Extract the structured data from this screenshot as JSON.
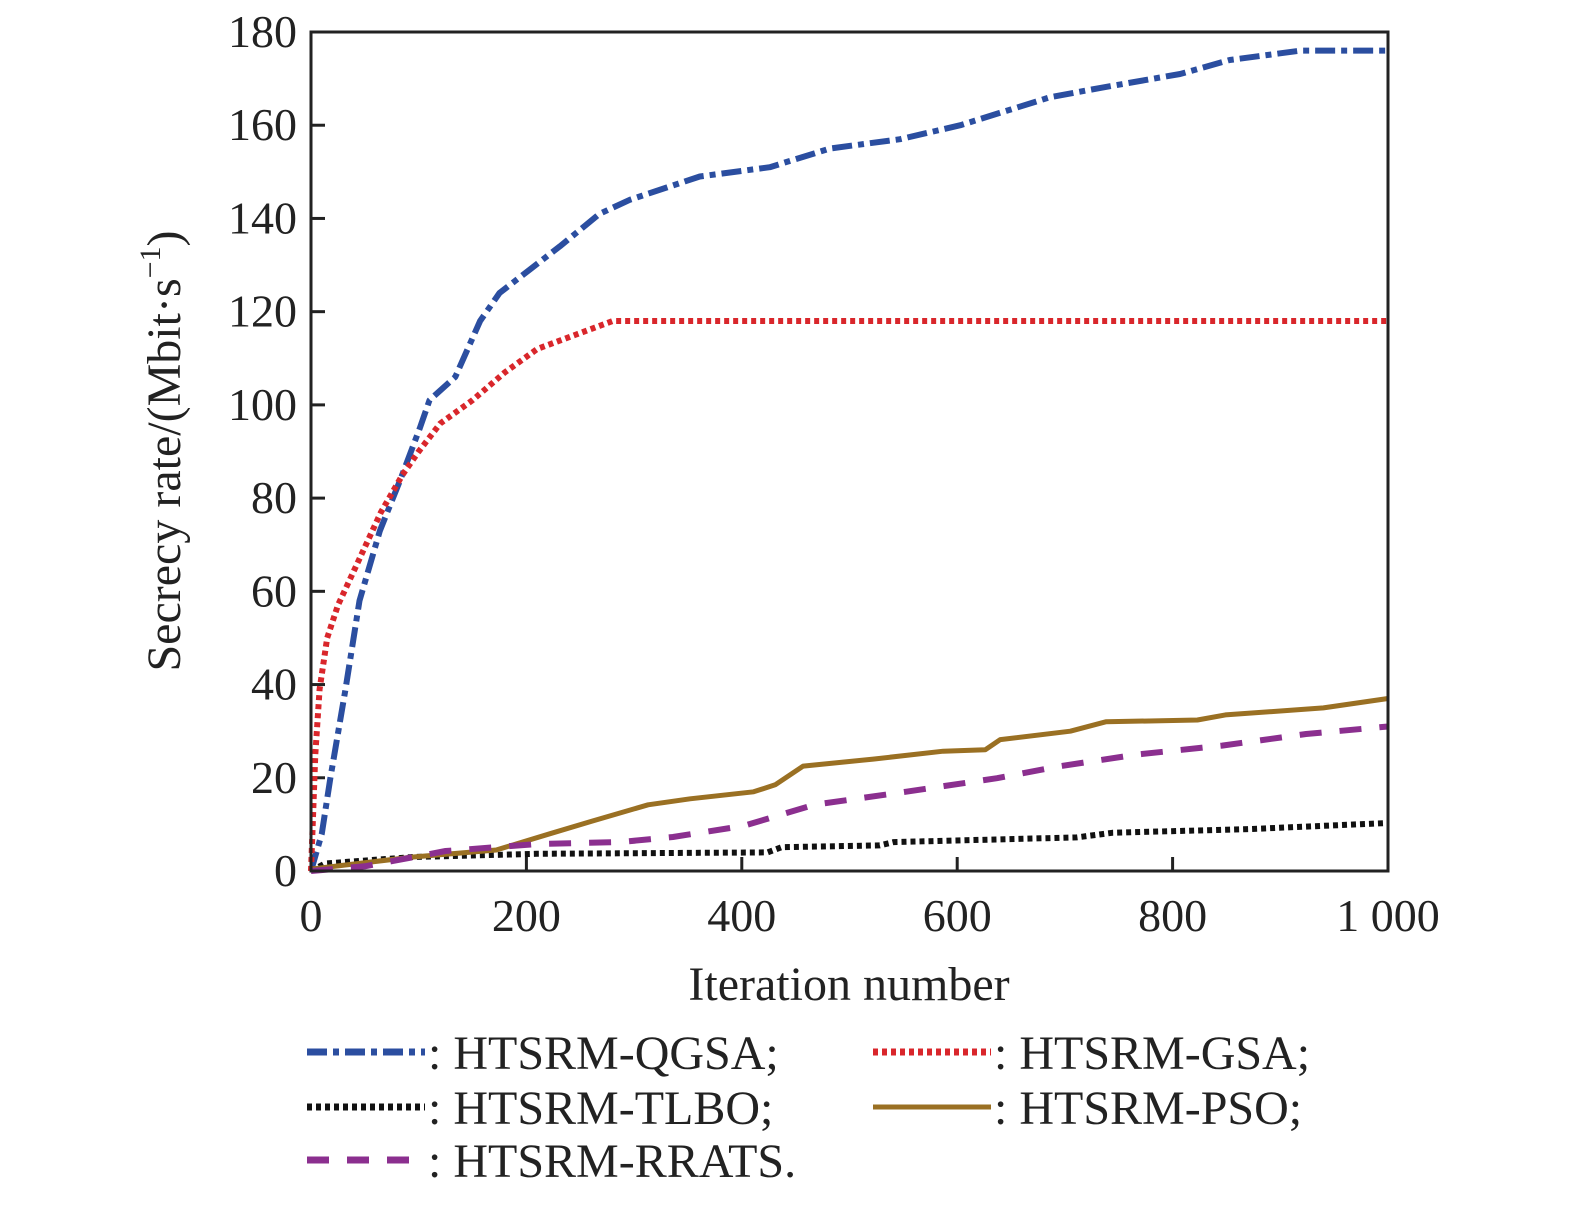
{
  "chart_data": {
    "type": "line",
    "xlabel": "Iteration number",
    "ylabel": {
      "main": "Secrecy rate/(Mbit·s",
      "sup": "−1",
      "close": ")"
    },
    "xlim": [
      0,
      1000
    ],
    "ylim": [
      0,
      180
    ],
    "xticks": [
      0,
      200,
      400,
      600,
      800,
      1000
    ],
    "xtick_labels": [
      "0",
      "200",
      "400",
      "600",
      "800",
      "1 000"
    ],
    "yticks": [
      0,
      20,
      40,
      60,
      80,
      100,
      120,
      140,
      160,
      180
    ],
    "ytick_labels": [
      "0",
      "20",
      "40",
      "60",
      "80",
      "100",
      "120",
      "140",
      "160",
      "180"
    ],
    "grid": false,
    "legend_placement": "bottom",
    "series": [
      {
        "name": "HTSRM-QGSA",
        "legend": ": HTSRM-QGSA;",
        "color": "#2b4ea0",
        "style": "dash-dot",
        "x": [
          0,
          10,
          18,
          32,
          45,
          64,
          83,
          101,
          110,
          134,
          157,
          175,
          203,
          231,
          268,
          296,
          361,
          426,
          482,
          547,
          603,
          686,
          733,
          807,
          853,
          919,
          1000
        ],
        "y": [
          0,
          8,
          20,
          39,
          58,
          73,
          84,
          95,
          101,
          106,
          118,
          124,
          129,
          134,
          141,
          144,
          149,
          151,
          155,
          157,
          160,
          166,
          168,
          171,
          174,
          176,
          176
        ]
      },
      {
        "name": "HTSRM-GSA",
        "legend": ": HTSRM-GSA;",
        "color": "#d9262b",
        "style": "dotted",
        "x": [
          0,
          4,
          8,
          15,
          25,
          45,
          65,
          85,
          100,
          120,
          150,
          180,
          210,
          245,
          280,
          1000
        ],
        "y": [
          0,
          25,
          39,
          50,
          57,
          67,
          77,
          85,
          90,
          96,
          101,
          107,
          112,
          115,
          118,
          118
        ]
      },
      {
        "name": "HTSRM-TLBO",
        "legend": ": HTSRM-TLBO;",
        "color": "#111111",
        "style": "dotted",
        "x": [
          0,
          13,
          95,
          210,
          424,
          437,
          528,
          541,
          711,
          744,
          873,
          1000
        ],
        "y": [
          0,
          1.6,
          3,
          3.7,
          4,
          5.1,
          5.5,
          6.2,
          7.2,
          8.2,
          9,
          10.3
        ]
      },
      {
        "name": "HTSRM-PSO",
        "legend": ": HTSRM-PSO;",
        "color": "#9a7023",
        "style": "solid",
        "x": [
          0,
          3,
          95,
          172,
          222,
          261,
          313,
          352,
          411,
          431,
          457,
          522,
          587,
          626,
          640,
          705,
          738,
          823,
          849,
          940,
          1000
        ],
        "y": [
          0,
          0.5,
          3,
          4.5,
          8,
          10.7,
          14.2,
          15.5,
          17,
          18.5,
          22.5,
          24,
          25.7,
          26,
          28.2,
          30,
          32,
          32.4,
          33.5,
          35,
          37
        ]
      },
      {
        "name": "HTSRM-RRATS",
        "legend": ": HTSRM-RRATS.",
        "color": "#8b2f8f",
        "style": "dashed",
        "x": [
          0,
          50,
          125,
          210,
          287,
          336,
          402,
          467,
          552,
          637,
          696,
          767,
          846,
          924,
          1000
        ],
        "y": [
          0,
          1,
          4.3,
          5.8,
          6.2,
          7.3,
          9.7,
          14.2,
          17,
          19.9,
          22.5,
          25,
          26.9,
          29.4,
          31
        ]
      }
    ]
  }
}
